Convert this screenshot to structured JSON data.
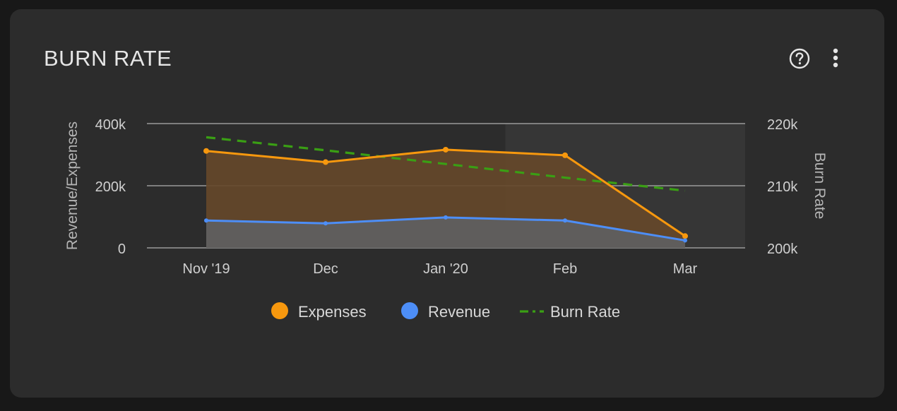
{
  "card": {
    "title": "BURN RATE"
  },
  "icons": {
    "help": "help-circle-icon",
    "more": "more-vertical-icon"
  },
  "colors": {
    "expenses": "#f7980e",
    "revenue": "#4d8ef7",
    "burn_rate": "#3a9f14",
    "expenses_fill": "#65482a",
    "revenue_fill": "#5f5f5f",
    "highlight": "#363636",
    "grid": "#9a9a9a"
  },
  "chart_data": {
    "type": "line",
    "title": "BURN RATE",
    "categories": [
      "Nov '19",
      "Dec",
      "Jan '20",
      "Feb",
      "Mar"
    ],
    "y_left": {
      "label": "Revenue/Expenses",
      "range": [
        0,
        400000
      ],
      "ticks": [
        0,
        200000,
        400000
      ],
      "tick_labels": [
        "0",
        "200k",
        "400k"
      ]
    },
    "y_right": {
      "label": "Burn Rate",
      "range": [
        200000,
        220000
      ],
      "ticks": [
        200000,
        210000,
        220000
      ],
      "tick_labels": [
        "200k",
        "210k",
        "220k"
      ]
    },
    "series": [
      {
        "name": "Expenses",
        "axis": "left",
        "style": "area-line",
        "values": [
          312000,
          276000,
          316000,
          298000,
          38000
        ]
      },
      {
        "name": "Revenue",
        "axis": "left",
        "style": "area-line",
        "values": [
          88000,
          79000,
          98000,
          88000,
          24000
        ]
      },
      {
        "name": "Burn Rate",
        "axis": "right",
        "style": "dashed-line",
        "values": [
          217800,
          215700,
          213500,
          211300,
          209200
        ]
      }
    ],
    "highlight_after_category": "Jan '20",
    "grid": true,
    "legend": {
      "position": "bottom",
      "items": [
        "Expenses",
        "Revenue",
        "Burn Rate"
      ]
    }
  }
}
